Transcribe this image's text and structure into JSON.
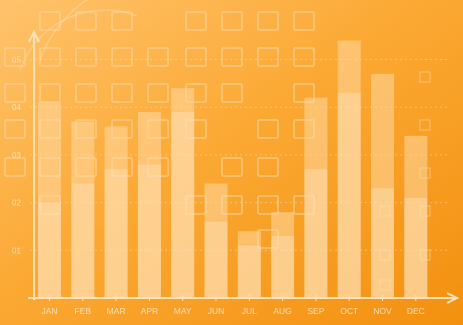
{
  "colors": {
    "background_light": "#ffc26a",
    "background_mid": "#fba733",
    "background_dark": "#f08a13",
    "bar_fill": "#ffd9a3",
    "bar_inner": "#ffe7c4",
    "axis": "#ffe2b8",
    "label": "#ffe9cc"
  },
  "chart_data": {
    "type": "bar",
    "title": "",
    "xlabel": "",
    "ylabel": "",
    "categories": [
      "JAN",
      "FEB",
      "MAR",
      "APR",
      "MAY",
      "JUN",
      "JUL",
      "AUG",
      "SEP",
      "OCT",
      "NOV",
      "DEC"
    ],
    "ytick_labels": [
      "01",
      "02",
      "03",
      "04",
      "05"
    ],
    "yticks": [
      0.1,
      0.2,
      0.3,
      0.4,
      0.5
    ],
    "ylim": [
      0,
      0.52
    ],
    "series": [
      {
        "values": [
          0.41,
          0.37,
          0.36,
          0.39,
          0.44,
          0.24,
          0.14,
          0.18,
          0.42,
          0.54,
          0.47,
          0.34
        ]
      },
      {
        "values": [
          0.2,
          0.24,
          0.27,
          0.28,
          0.39,
          0.16,
          0.11,
          0.13,
          0.27,
          0.43,
          0.23,
          0.21
        ]
      }
    ],
    "grid": true,
    "legend": "none"
  }
}
